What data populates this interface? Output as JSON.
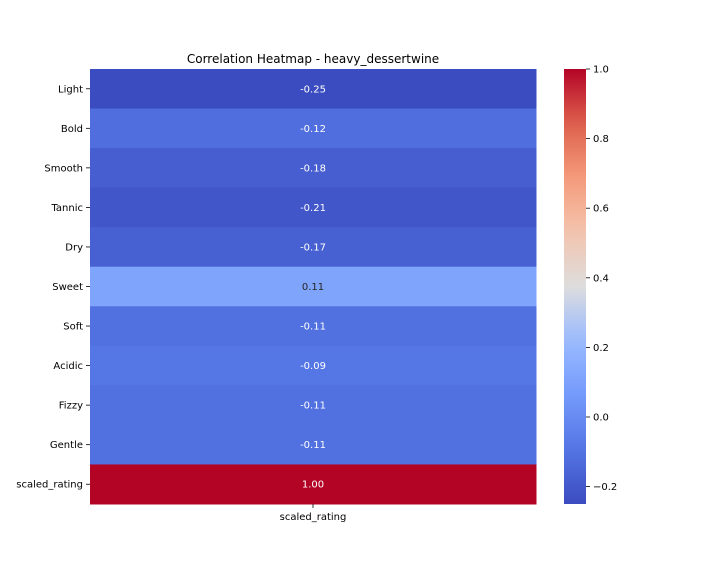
{
  "chart_data": {
    "type": "heatmap",
    "title": "Correlation Heatmap - heavy_dessertwine",
    "rows": [
      "Light",
      "Bold",
      "Smooth",
      "Tannic",
      "Dry",
      "Sweet",
      "Soft",
      "Acidic",
      "Fizzy",
      "Gentle",
      "scaled_rating"
    ],
    "columns": [
      "scaled_rating"
    ],
    "values": [
      [
        -0.25
      ],
      [
        -0.12
      ],
      [
        -0.18
      ],
      [
        -0.21
      ],
      [
        -0.17
      ],
      [
        0.11
      ],
      [
        -0.11
      ],
      [
        -0.09
      ],
      [
        -0.11
      ],
      [
        -0.11
      ],
      [
        1.0
      ]
    ],
    "value_labels": [
      "-0.25",
      "-0.12",
      "-0.18",
      "-0.21",
      "-0.17",
      "0.11",
      "-0.11",
      "-0.09",
      "-0.11",
      "-0.11",
      "1.00"
    ],
    "colormap": "coolwarm",
    "vmin": -0.25,
    "vmax": 1.0,
    "colorbar_ticks": [
      -0.2,
      0.0,
      0.2,
      0.4,
      0.6,
      0.8,
      1.0
    ],
    "colorbar_tick_labels": [
      "−0.2",
      "0.0",
      "0.2",
      "0.4",
      "0.6",
      "0.8",
      "1.0"
    ],
    "colorbar": true,
    "annotations": true
  }
}
